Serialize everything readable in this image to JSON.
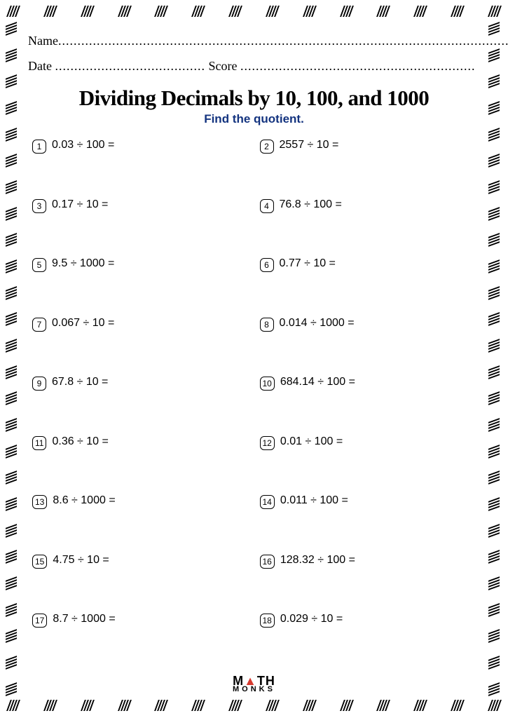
{
  "header": {
    "name_label": "Name",
    "date_label": "Date",
    "score_label": "Score"
  },
  "title": "Dividing Decimals by 10, 100, and 1000",
  "subtitle": "Find the quotient.",
  "problems": [
    {
      "n": "1",
      "text": "0.03 ÷ 100 ="
    },
    {
      "n": "2",
      "text": "2557 ÷ 10 ="
    },
    {
      "n": "3",
      "text": "0.17 ÷ 10 ="
    },
    {
      "n": "4",
      "text": "76.8 ÷ 100 ="
    },
    {
      "n": "5",
      "text": "9.5 ÷ 1000 ="
    },
    {
      "n": "6",
      "text": "0.77 ÷ 10 ="
    },
    {
      "n": "7",
      "text": "0.067 ÷ 10 ="
    },
    {
      "n": "8",
      "text": "0.014 ÷ 1000 ="
    },
    {
      "n": "9",
      "text": "67.8 ÷ 10 ="
    },
    {
      "n": "10",
      "text": "684.14 ÷ 100 ="
    },
    {
      "n": "11",
      "text": "0.36 ÷ 10 ="
    },
    {
      "n": "12",
      "text": "0.01 ÷ 100 ="
    },
    {
      "n": "13",
      "text": "8.6 ÷ 1000 ="
    },
    {
      "n": "14",
      "text": "0.011 ÷ 100 ="
    },
    {
      "n": "15",
      "text": "4.75 ÷ 10 ="
    },
    {
      "n": "16",
      "text": "128.32 ÷ 100 ="
    },
    {
      "n": "17",
      "text": "8.7 ÷ 1000 ="
    },
    {
      "n": "18",
      "text": "0.029 ÷ 10 ="
    }
  ],
  "footer": {
    "top_left": "M",
    "top_mid": "▲",
    "top_right": "TH",
    "bottom": "MONKS"
  },
  "style": {
    "title_color": "#000000",
    "subtitle_color": "#13337f",
    "border_color": "#000000",
    "background": "#ffffff",
    "hatch_groups_h": 14,
    "hatch_groups_v": 26,
    "hatch_per_group": 4
  }
}
